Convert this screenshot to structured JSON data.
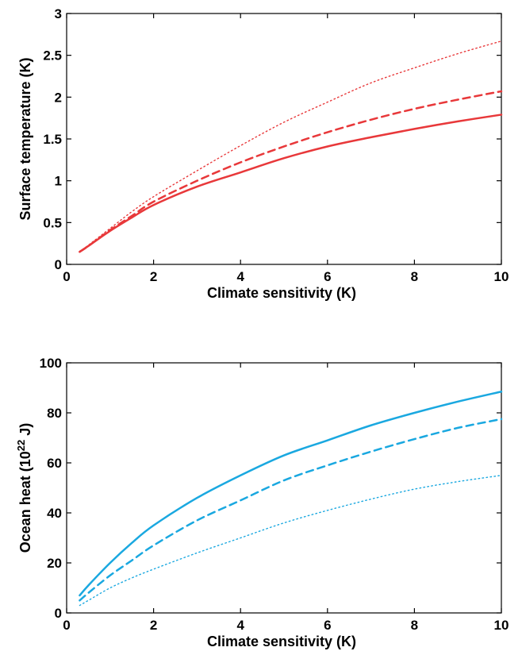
{
  "chart_data": [
    {
      "type": "line",
      "xlabel": "Climate sensitivity (K)",
      "ylabel": "Surface temperature (K)",
      "xlim": [
        0,
        10
      ],
      "ylim": [
        0,
        3
      ],
      "xticks": [
        "0",
        "2",
        "4",
        "6",
        "8",
        "10"
      ],
      "yticks": [
        "0",
        "0.5",
        "1",
        "1.5",
        "2",
        "2.5",
        "3"
      ],
      "color": "#e8383a",
      "grid": false,
      "legend": "none",
      "x": [
        0.3,
        0.5,
        1,
        1.5,
        2,
        3,
        4,
        5,
        6,
        7,
        8,
        9,
        10
      ],
      "series": [
        {
          "style": "solid",
          "values": [
            0.15,
            0.22,
            0.4,
            0.56,
            0.71,
            0.93,
            1.1,
            1.27,
            1.41,
            1.52,
            1.62,
            1.71,
            1.79
          ]
        },
        {
          "style": "dashed",
          "values": [
            0.15,
            0.22,
            0.41,
            0.58,
            0.75,
            1.0,
            1.22,
            1.41,
            1.58,
            1.73,
            1.86,
            1.97,
            2.07
          ]
        },
        {
          "style": "dotted",
          "values": [
            0.15,
            0.23,
            0.43,
            0.63,
            0.81,
            1.12,
            1.42,
            1.7,
            1.94,
            2.17,
            2.35,
            2.52,
            2.67
          ]
        }
      ]
    },
    {
      "type": "line",
      "xlabel": "Climate sensitivity (K)",
      "ylabel": "Ocean heat (10",
      "ylabel_sup": "22",
      "ylabel_unit": " J)",
      "xlim": [
        0,
        10
      ],
      "ylim": [
        0,
        100
      ],
      "xticks": [
        "0",
        "2",
        "4",
        "6",
        "8",
        "10"
      ],
      "yticks": [
        "0",
        "20",
        "40",
        "60",
        "80",
        "100"
      ],
      "color": "#1aa8e0",
      "grid": false,
      "legend": "none",
      "x": [
        0.3,
        0.5,
        1,
        1.5,
        2,
        3,
        4,
        5,
        6,
        7,
        8,
        9,
        10
      ],
      "series": [
        {
          "style": "solid",
          "values": [
            7,
            11,
            20,
            28,
            35,
            46,
            55,
            63,
            69,
            75,
            80,
            84.5,
            88.5
          ]
        },
        {
          "style": "dashed",
          "values": [
            5,
            8,
            15,
            21,
            27,
            37,
            45,
            53,
            59,
            64.5,
            69.5,
            74,
            77.5
          ]
        },
        {
          "style": "dotted",
          "values": [
            3,
            5,
            10,
            14,
            17.5,
            24,
            30,
            36,
            41,
            45.5,
            49.5,
            52.5,
            55
          ]
        }
      ]
    }
  ]
}
